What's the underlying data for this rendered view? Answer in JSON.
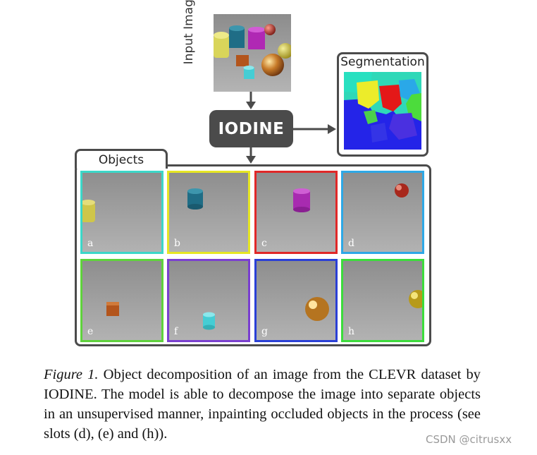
{
  "input_label": "Input Image",
  "model_label": "IODINE",
  "segmentation_label": "Segmentation",
  "objects_label": "Objects",
  "slots": [
    {
      "letter": "a",
      "color": "#3cd7c8",
      "object": "yellow cylinder"
    },
    {
      "letter": "b",
      "color": "#e6e623",
      "object": "teal cylinder"
    },
    {
      "letter": "c",
      "color": "#e02828",
      "object": "purple cylinder"
    },
    {
      "letter": "d",
      "color": "#2ea8e6",
      "object": "red sphere"
    },
    {
      "letter": "e",
      "color": "#5fd23c",
      "object": "brown cube"
    },
    {
      "letter": "f",
      "color": "#7a3fd0",
      "object": "cyan cylinder"
    },
    {
      "letter": "g",
      "color": "#2a3fd6",
      "object": "gold sphere"
    },
    {
      "letter": "h",
      "color": "#3cdc3c",
      "object": "gold sphere"
    }
  ],
  "caption": {
    "figure": "Figure 1.",
    "text": " Object decomposition of an image from the CLEVR dataset by IODINE. The model is able to decompose the image into separate objects in an unsupervised manner, inpainting occluded objects in the process (see slots (d), (e) and (h))."
  },
  "watermark": "CSDN @citrusxx",
  "colors": {
    "box": "#4b4b4b",
    "arrow": "#4b4b4b"
  }
}
